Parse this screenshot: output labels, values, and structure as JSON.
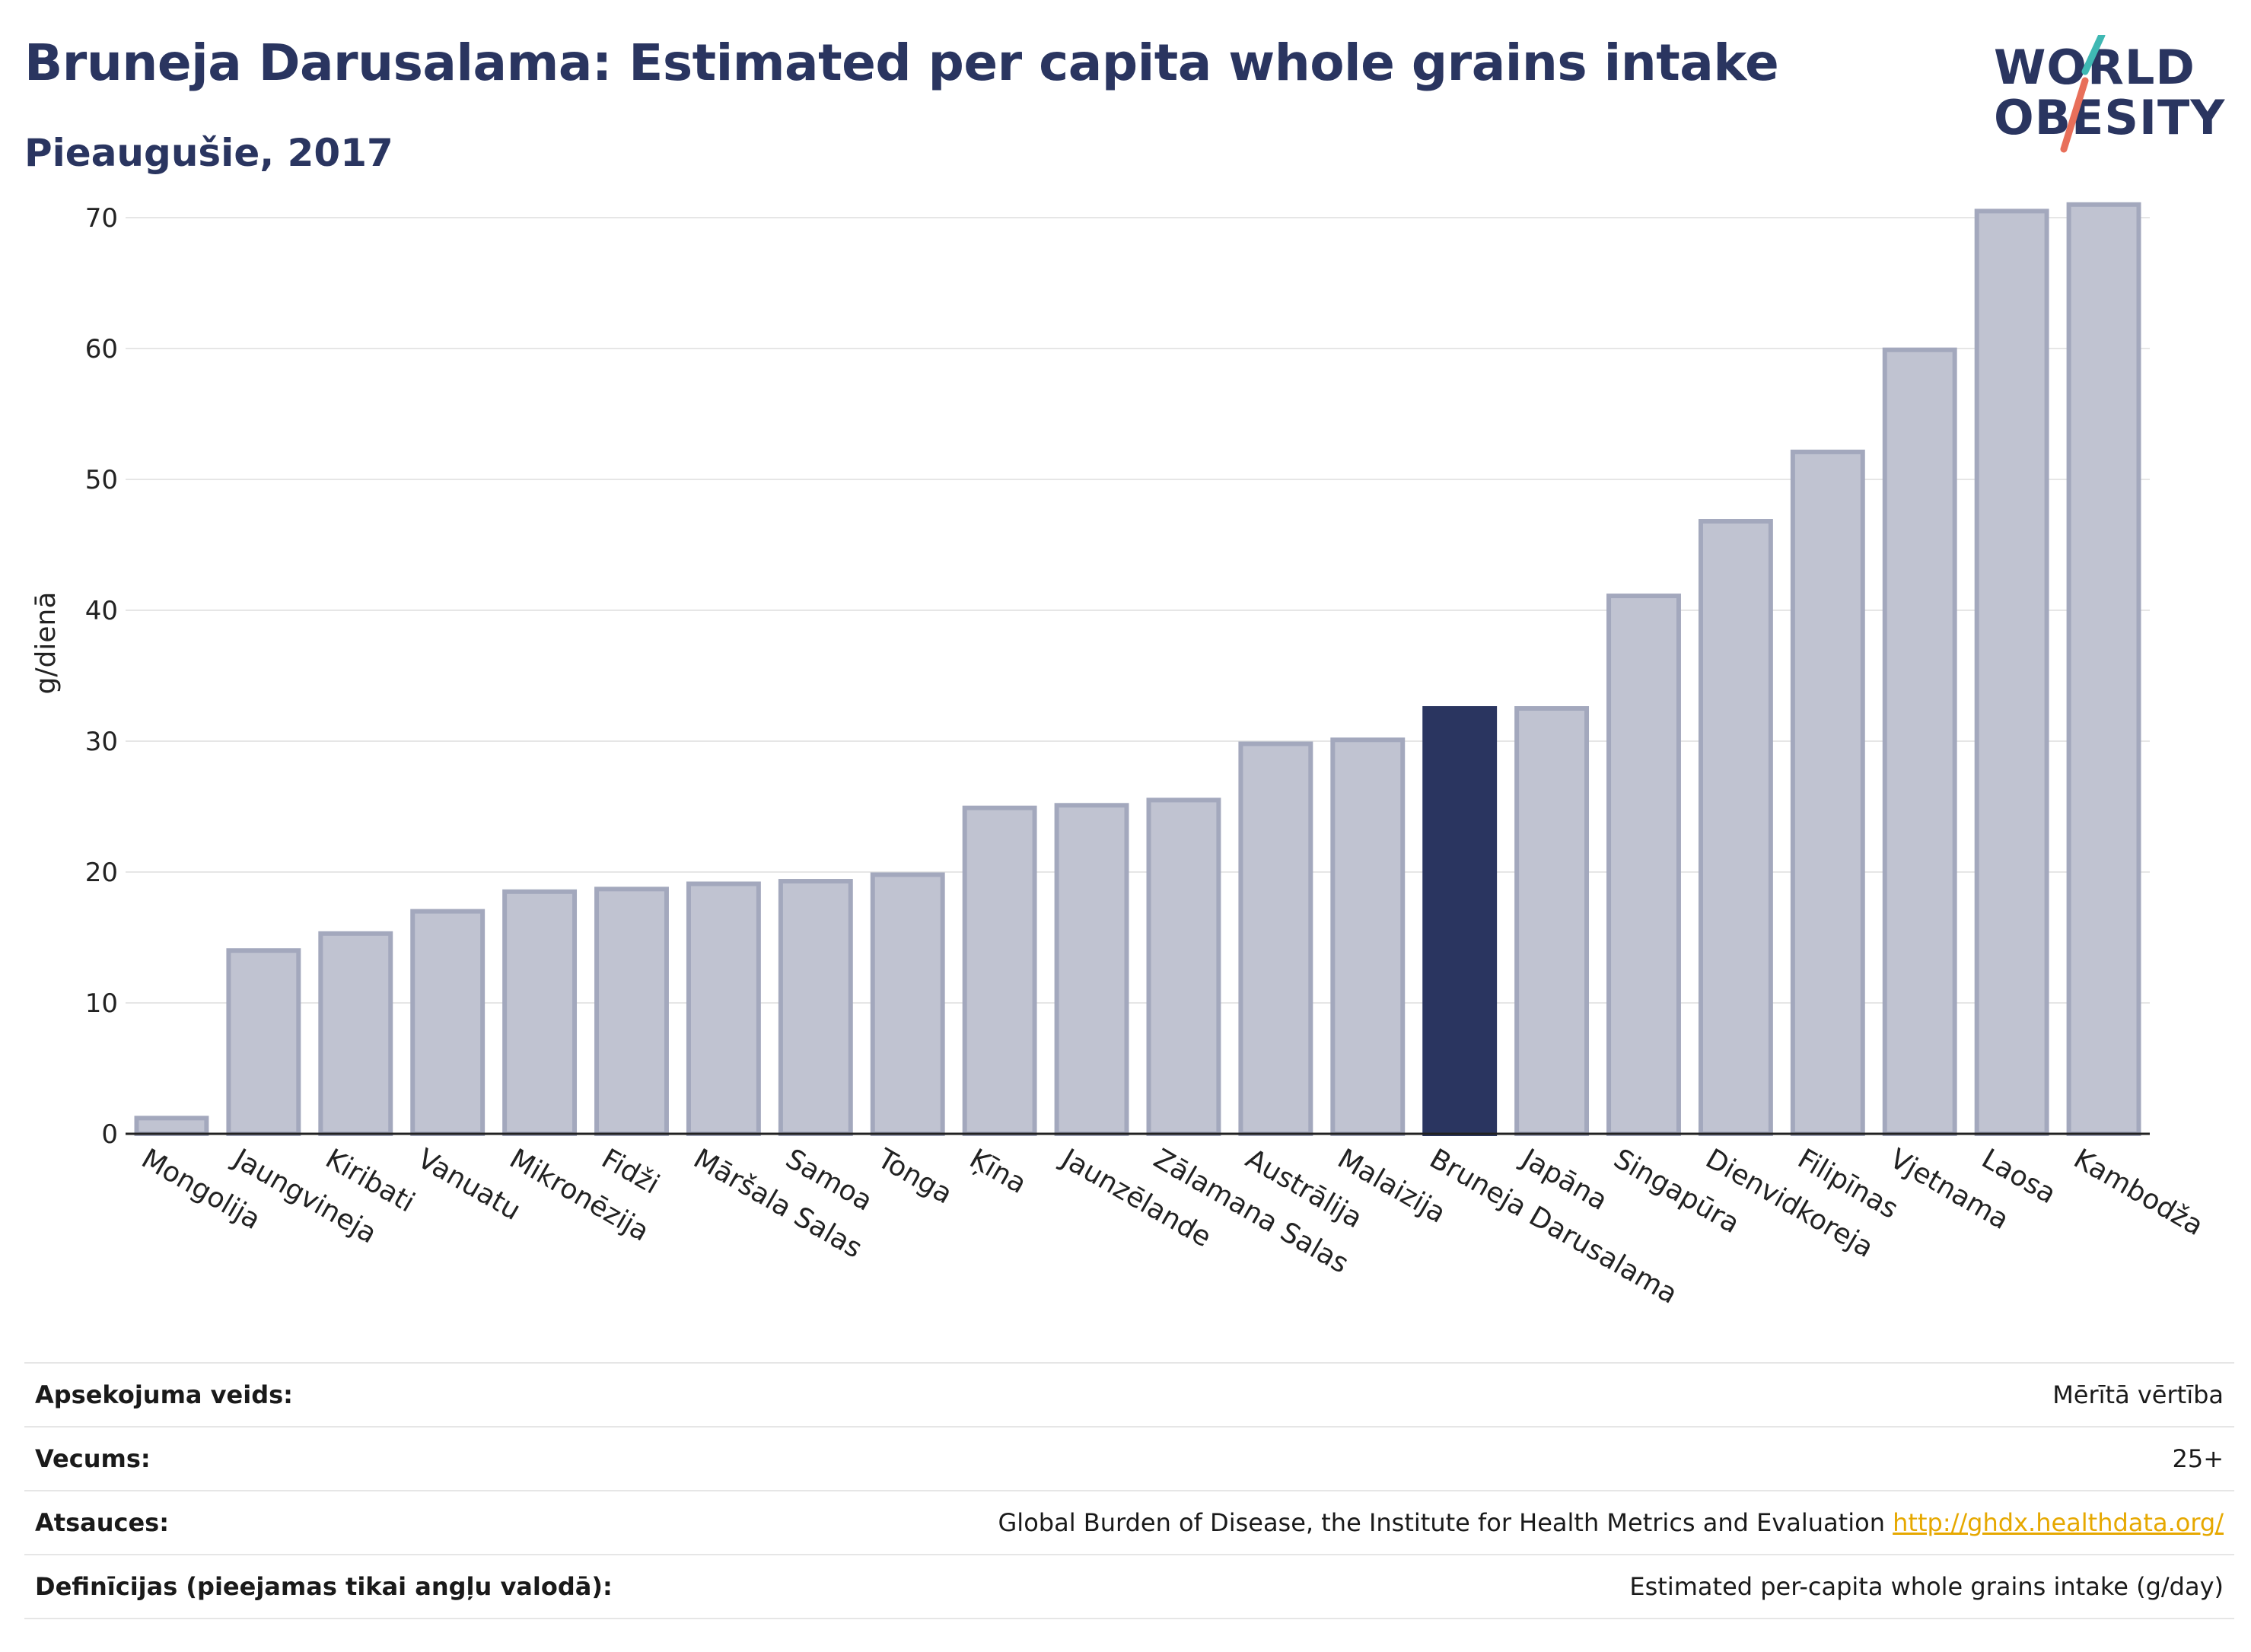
{
  "header": {
    "title": "Bruneja Darusalama: Estimated per capita whole grains intake",
    "subtitle": "Pieaugušie, 2017"
  },
  "logo": {
    "line1": "WORLD",
    "line2": "OBESITY"
  },
  "colors": {
    "bar": "#c0c3d1",
    "bar_edge": "#a3a8bd",
    "highlight": "#2a3560",
    "grid": "#e6e6e6",
    "title": "#2a3560",
    "link": "#e6a800"
  },
  "chart_data": {
    "type": "bar",
    "title": "Bruneja Darusalama: Estimated per capita whole grains intake",
    "subtitle": "Pieaugušie, 2017",
    "ylabel": "g/dienā",
    "xlabel": "",
    "ylim": [
      0,
      75
    ],
    "yticks": [
      0,
      10,
      20,
      30,
      40,
      50,
      60,
      70
    ],
    "grid": true,
    "highlight": "Bruneja Darusalama",
    "categories": [
      "Mongolija",
      "Jaungvineja",
      "Kiribati",
      "Vanuatu",
      "Mikronēzija",
      "Fidži",
      "Māršala Salas",
      "Samoa",
      "Tonga",
      "Ķīna",
      "Jaunzēlande",
      "Zālamana Salas",
      "Austrālija",
      "Malaizija",
      "Bruneja Darusalama",
      "Japāna",
      "Singapūra",
      "Dienvidkoreja",
      "Filipīnas",
      "Vjetnama",
      "Laosa",
      "Kambodža"
    ],
    "values": [
      1.2,
      14.0,
      15.3,
      17.0,
      18.5,
      18.7,
      19.1,
      19.3,
      19.8,
      24.9,
      25.1,
      25.5,
      29.8,
      30.1,
      32.5,
      32.5,
      41.1,
      46.8,
      52.1,
      59.9,
      70.5,
      71.0
    ]
  },
  "info": {
    "rows": [
      {
        "key": "Apsekojuma veids:",
        "value": "Mērītā vērtība"
      },
      {
        "key": "Vecums:",
        "value": "25+"
      },
      {
        "key": "Atsauces:",
        "value": "Global Burden of Disease, the Institute for Health Metrics and Evaluation",
        "link": "http://ghdx.healthdata.org/"
      },
      {
        "key": "Definīcijas (pieejamas tikai angļu valodā):",
        "value": "Estimated per-capita whole grains intake (g/day)"
      }
    ]
  }
}
